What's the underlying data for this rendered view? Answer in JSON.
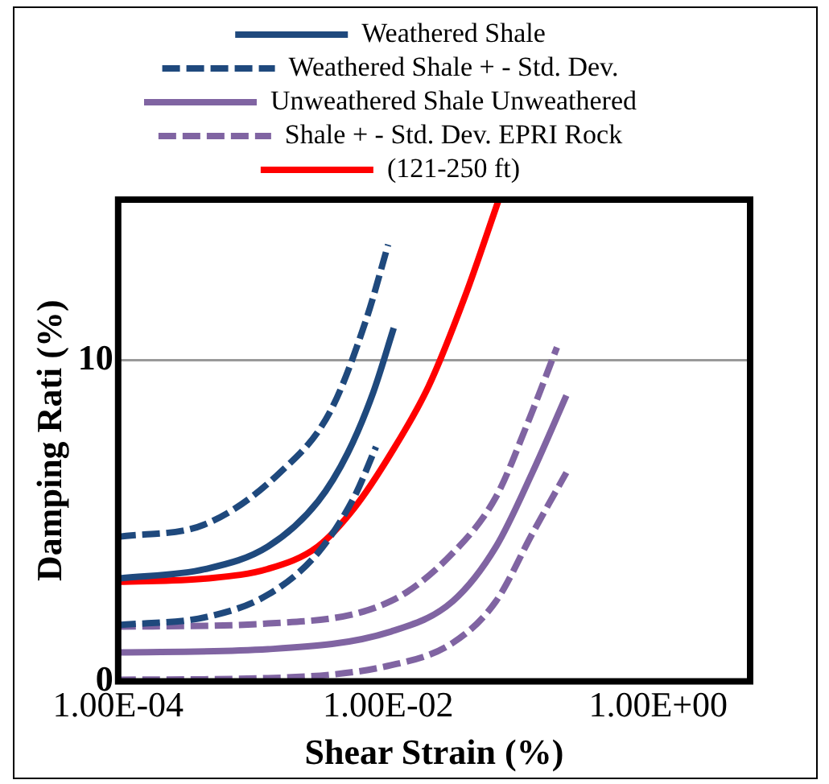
{
  "chart_data": {
    "type": "line",
    "xlabel": "Shear Strain (%)",
    "ylabel": "Damping Rati (%)",
    "log": "x",
    "xlim": [
      0.0001,
      4.8
    ],
    "xticks": [
      {
        "value": 0.0001,
        "label": "1.00E-04"
      },
      {
        "value": 0.01,
        "label": "1.00E-02"
      },
      {
        "value": 1,
        "label": "1.00E+00"
      }
    ],
    "ylim": [
      0,
      15
    ],
    "yticks": [
      0,
      10
    ],
    "grid": "y",
    "legend": "top",
    "marker": "none",
    "series": [
      {
        "name": "Weathered Shale",
        "color": "#1f497d",
        "line_style": "solid",
        "x": [
          0.0001,
          0.000447,
          0.00129,
          0.00302,
          0.00501,
          0.00776,
          0.011
        ],
        "values": [
          3.2,
          3.5,
          4.2,
          5.6,
          7.1,
          9.0,
          11.0
        ]
      },
      {
        "name": "Weathered Shale + - Std. Dev.",
        "color": "#1f497d",
        "line_style": "dashed",
        "x": [
          0.0001,
          0.000447,
          0.00158,
          0.00372,
          0.00692,
          0.01
        ],
        "values": [
          4.5,
          4.9,
          6.5,
          8.4,
          11.3,
          13.6
        ]
      },
      {
        "color": "#1f497d",
        "line_style": "dashed",
        "x": [
          0.0001,
          0.000447,
          0.00129,
          0.00302,
          0.00562,
          0.00813
        ],
        "values": [
          1.75,
          2.0,
          2.7,
          4.0,
          5.75,
          7.3
        ]
      },
      {
        "name": "Unweathered Shale Unweathered",
        "color": "#8064a2",
        "line_style": "solid",
        "x": [
          0.0001,
          0.00129,
          0.0105,
          0.0302,
          0.0631,
          0.117,
          0.209
        ],
        "values": [
          0.9,
          1.0,
          1.55,
          2.5,
          4.2,
          6.5,
          8.9
        ]
      },
      {
        "name": "Shale + - Std. Dev. EPRI Rock",
        "color": "#8064a2",
        "line_style": "dashed",
        "x": [
          0.0001,
          0.00129,
          0.0105,
          0.0302,
          0.0631,
          0.107,
          0.178
        ],
        "values": [
          1.7,
          1.8,
          2.5,
          4.0,
          5.75,
          8.0,
          10.4
        ]
      },
      {
        "color": "#8064a2",
        "line_style": "dashed",
        "x": [
          0.0001,
          0.00129,
          0.0105,
          0.0302,
          0.0631,
          0.117,
          0.209
        ],
        "values": [
          0.05,
          0.1,
          0.5,
          1.2,
          2.5,
          4.6,
          6.5
        ]
      },
      {
        "name": "(121-250 ft)",
        "color": "#ff0000",
        "line_style": "solid",
        "x": [
          0.0001,
          0.000447,
          0.00129,
          0.00302,
          0.00562,
          0.0105,
          0.02,
          0.0372,
          0.066
        ],
        "values": [
          3.1,
          3.2,
          3.5,
          4.2,
          5.4,
          7.1,
          9.2,
          12.0,
          15.0
        ]
      }
    ]
  }
}
